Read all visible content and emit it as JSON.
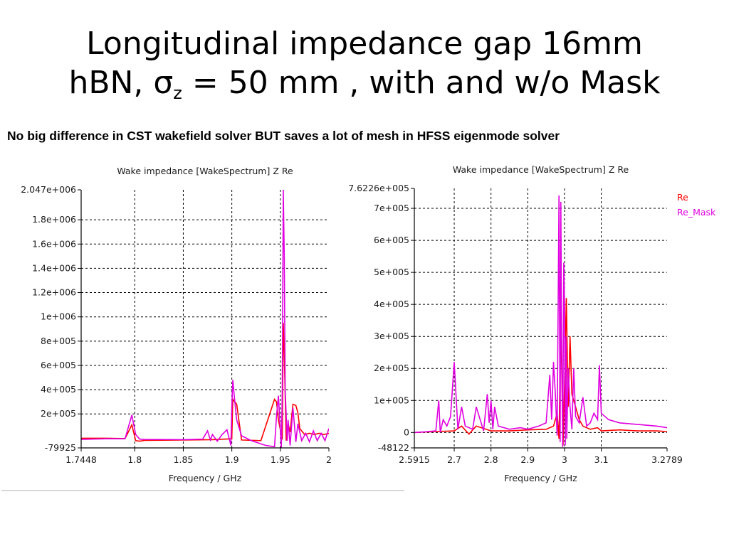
{
  "slide": {
    "title_line1": "Longitudinal impedance gap 16mm",
    "title_line2_a": "hBN, σ",
    "title_line2_sub": "z",
    "title_line2_b": " = 50 mm , with and w/o Mask",
    "subtitle": "No big difference in CST wakefield solver BUT saves a lot of mesh in HFSS eigenmode solver"
  },
  "colors": {
    "re": "#ff0000",
    "re_mask": "#e000e0",
    "grid": "#000000",
    "axis": "#000000"
  },
  "chart_data": [
    {
      "type": "line",
      "title": "Wake impedance [WakeSpectrum] Z Re",
      "xlabel": "Frequency / GHz",
      "ylabel": "",
      "xlim": [
        1.7448,
        2.0
      ],
      "ylim": [
        -79925,
        2047000
      ],
      "x_ticks": [
        1.7448,
        1.8,
        1.85,
        1.9,
        1.95,
        2.0
      ],
      "x_tick_labels": [
        "1.7448",
        "1.8",
        "1.85",
        "1.9",
        "1.95",
        "2"
      ],
      "y_ticks": [
        -79925,
        200000,
        400000,
        600000,
        800000,
        1000000,
        1200000,
        1400000,
        1600000,
        1800000,
        2047000
      ],
      "y_tick_labels": [
        "-79925",
        "2e+005",
        "4e+005",
        "6e+005",
        "8e+005",
        "1e+006",
        "1.2e+006",
        "1.4e+006",
        "1.6e+006",
        "1.8e+006",
        "2.047e+006"
      ],
      "grid": true,
      "legend": "none",
      "series": [
        {
          "color_key": "re",
          "x": [
            1.7448,
            1.77,
            1.79,
            1.797,
            1.801,
            1.805,
            1.81,
            1.85,
            1.88,
            1.9,
            1.901,
            1.903,
            1.905,
            1.91,
            1.93,
            1.944,
            1.946,
            1.948,
            1.952,
            1.953,
            1.954,
            1.955,
            1.956,
            1.958,
            1.96,
            1.963,
            1.966,
            1.968,
            1.97,
            1.975,
            1.98,
            1.985,
            1.99,
            1.995,
            2.0
          ],
          "y": [
            0,
            0,
            -3000,
            110000,
            -20000,
            -25000,
            -18000,
            -15000,
            -12000,
            -5000,
            320000,
            300000,
            280000,
            -15000,
            -20000,
            320000,
            300000,
            150000,
            -10000,
            950000,
            700000,
            350000,
            -20000,
            120000,
            50000,
            280000,
            270000,
            210000,
            80000,
            30000,
            40000,
            30000,
            40000,
            30000,
            40000
          ]
        },
        {
          "color_key": "re_mask",
          "x": [
            1.7448,
            1.77,
            1.79,
            1.797,
            1.801,
            1.805,
            1.81,
            1.85,
            1.87,
            1.875,
            1.878,
            1.88,
            1.885,
            1.89,
            1.895,
            1.899,
            1.9,
            1.901,
            1.903,
            1.905,
            1.91,
            1.92,
            1.935,
            1.944,
            1.946,
            1.948,
            1.951,
            1.952,
            1.953,
            1.954,
            1.955,
            1.957,
            1.958,
            1.96,
            1.963,
            1.966,
            1.968,
            1.972,
            1.976,
            1.98,
            1.984,
            1.988,
            1.992,
            1.996,
            2.0
          ],
          "y": [
            -10000,
            -5000,
            -5000,
            190000,
            30000,
            -8000,
            -10000,
            -12000,
            -8000,
            60000,
            -15000,
            30000,
            -25000,
            30000,
            70000,
            -60000,
            250000,
            480000,
            310000,
            150000,
            20000,
            -20000,
            -60000,
            -70000,
            180000,
            350000,
            -80000,
            400000,
            2047000,
            1500000,
            400000,
            -20000,
            150000,
            -60000,
            250000,
            -30000,
            120000,
            -20000,
            40000,
            -30000,
            60000,
            -20000,
            40000,
            -20000,
            80000
          ]
        }
      ]
    },
    {
      "type": "line",
      "title": "Wake impedance [WakeSpectrum] Z Re",
      "xlabel": "Frequency / GHz",
      "ylabel": "",
      "xlim": [
        2.5915,
        3.2789
      ],
      "ylim": [
        -48122,
        762260
      ],
      "x_ticks": [
        2.5915,
        2.7,
        2.8,
        2.9,
        3.0,
        3.1,
        3.2789
      ],
      "x_tick_labels": [
        "2.5915",
        "2.7",
        "2.8",
        "2.9",
        "3",
        "3.1",
        "3.2789"
      ],
      "y_ticks": [
        -48122,
        0,
        100000,
        200000,
        300000,
        400000,
        500000,
        600000,
        700000,
        762260
      ],
      "y_tick_labels": [
        "-48122",
        "0",
        "1e+005",
        "2e+005",
        "3e+005",
        "4e+005",
        "5e+005",
        "6e+005",
        "7e+005",
        "7.6226e+005"
      ],
      "grid": true,
      "legend": "top-right",
      "series": [
        {
          "name": "Re",
          "color_key": "re",
          "x": [
            2.5915,
            2.65,
            2.7,
            2.72,
            2.74,
            2.76,
            2.8,
            2.85,
            2.9,
            2.95,
            2.97,
            2.98,
            2.985,
            2.99,
            2.993,
            2.996,
            3.0,
            3.005,
            3.01,
            3.015,
            3.02,
            3.03,
            3.04,
            3.05,
            3.07,
            3.09,
            3.1,
            3.15,
            3.2,
            3.25,
            3.2789
          ],
          "y": [
            0,
            3000,
            5000,
            20000,
            -5000,
            20000,
            5000,
            5000,
            8000,
            10000,
            20000,
            60000,
            -20000,
            350000,
            150000,
            -40000,
            150000,
            420000,
            80000,
            300000,
            120000,
            80000,
            40000,
            20000,
            10000,
            15000,
            5000,
            8000,
            5000,
            5000,
            3000
          ]
        },
        {
          "name": "Re_Mask",
          "color_key": "re_mask",
          "x": [
            2.5915,
            2.62,
            2.65,
            2.658,
            2.662,
            2.67,
            2.68,
            2.69,
            2.7,
            2.71,
            2.72,
            2.73,
            2.75,
            2.76,
            2.78,
            2.79,
            2.795,
            2.8,
            2.805,
            2.81,
            2.82,
            2.85,
            2.88,
            2.9,
            2.93,
            2.95,
            2.96,
            2.965,
            2.97,
            2.975,
            2.98,
            2.985,
            2.988,
            2.99,
            2.992,
            2.995,
            2.998,
            3.0,
            3.002,
            3.004,
            3.006,
            3.01,
            3.015,
            3.02,
            3.025,
            3.03,
            3.04,
            3.05,
            3.06,
            3.07,
            3.08,
            3.09,
            3.095,
            3.1,
            3.12,
            3.15,
            3.2,
            3.25,
            3.2789
          ],
          "y": [
            0,
            2000,
            5000,
            100000,
            0,
            40000,
            20000,
            50000,
            220000,
            10000,
            80000,
            20000,
            10000,
            80000,
            5000,
            120000,
            30000,
            100000,
            10000,
            80000,
            20000,
            10000,
            15000,
            10000,
            20000,
            30000,
            180000,
            40000,
            220000,
            120000,
            -10000,
            740000,
            -30000,
            720000,
            300000,
            -45000,
            530000,
            400000,
            -40000,
            300000,
            -20000,
            200000,
            80000,
            10000,
            200000,
            50000,
            30000,
            110000,
            20000,
            30000,
            60000,
            40000,
            210000,
            60000,
            40000,
            30000,
            25000,
            20000,
            15000
          ]
        }
      ]
    }
  ]
}
